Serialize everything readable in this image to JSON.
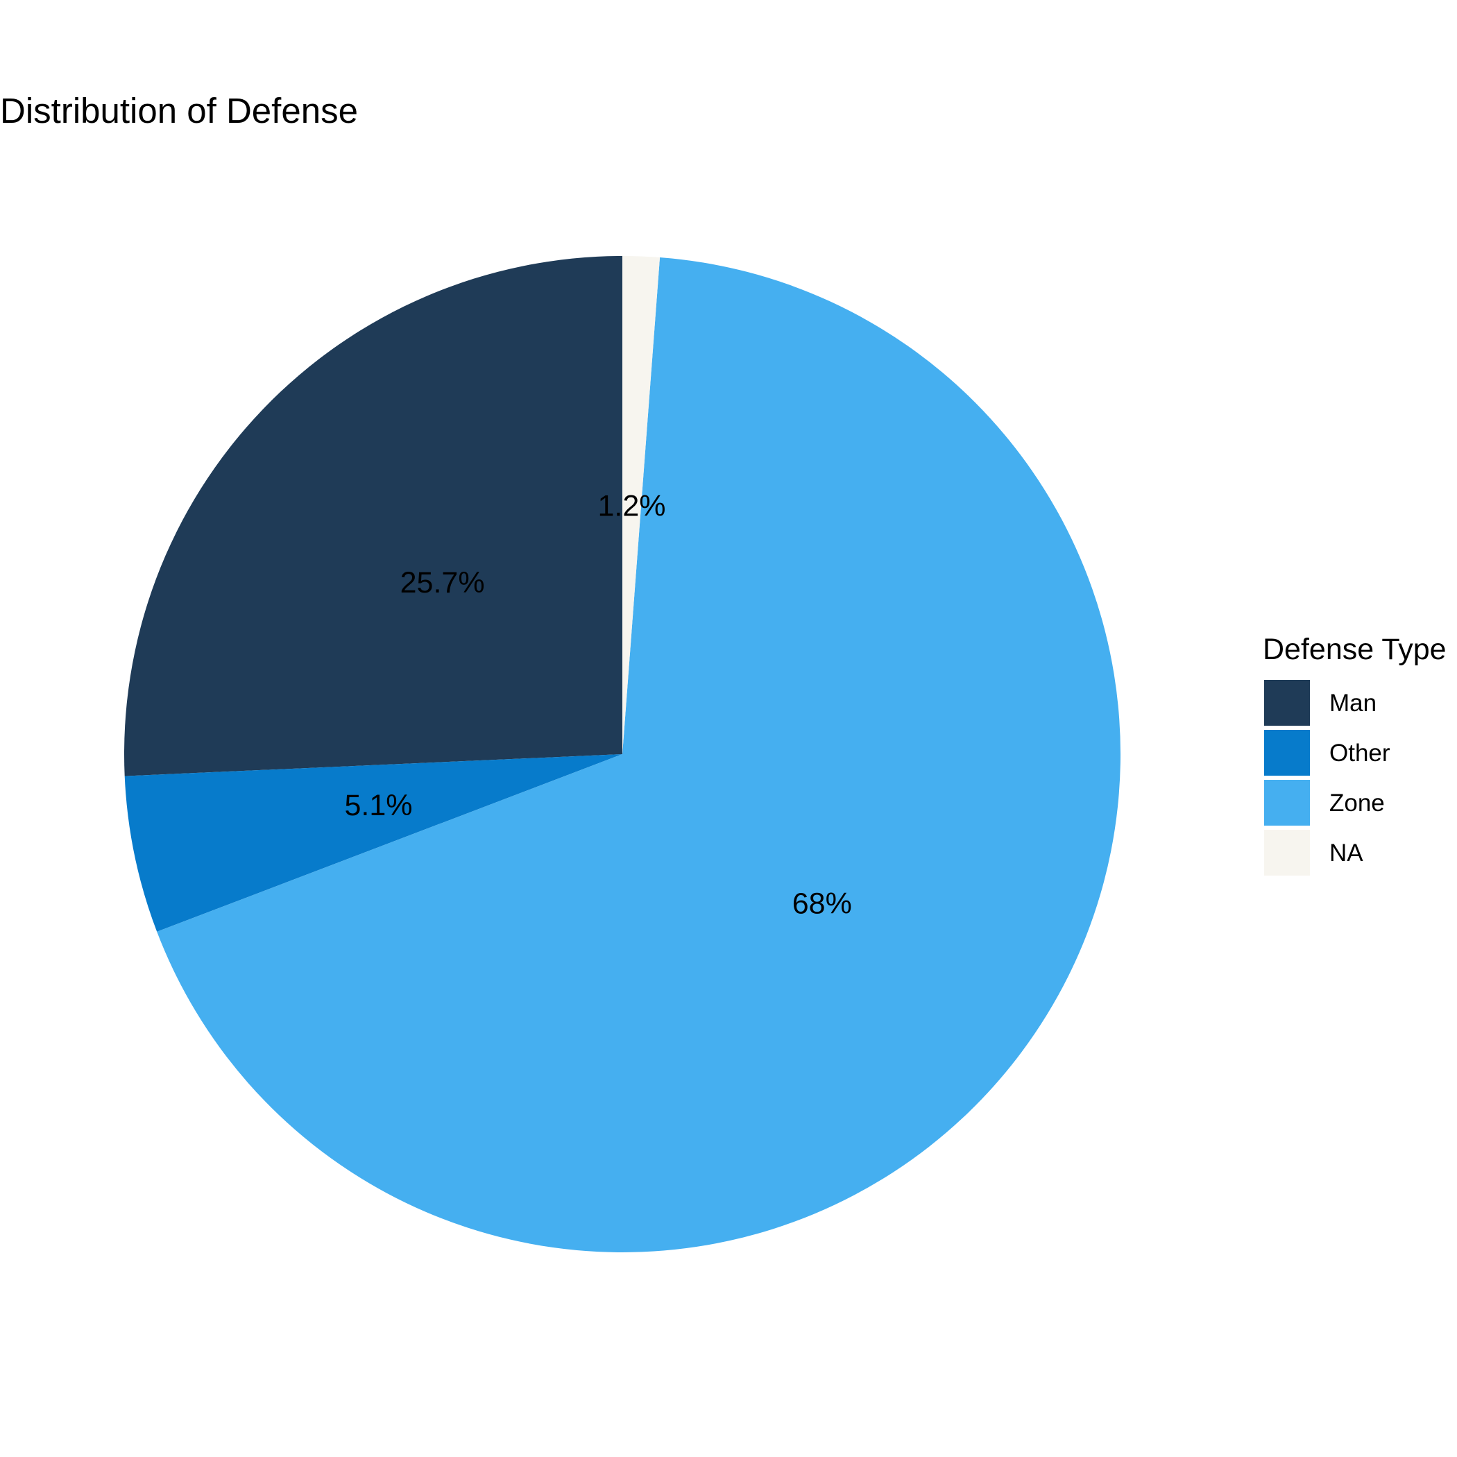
{
  "chart_data": {
    "type": "pie",
    "title": "Distribution of Defense",
    "legend_title": "Defense Type",
    "legend_position": "right",
    "start_angle": "12 o'clock",
    "direction": "counterclockwise",
    "slices": [
      {
        "category": "Man",
        "value": 25.7,
        "label": "25.7%",
        "color": "#1F3B57"
      },
      {
        "category": "Other",
        "value": 5.1,
        "label": "5.1%",
        "color": "#077BCB"
      },
      {
        "category": "Zone",
        "value": 68.0,
        "label": "68%",
        "color": "#45AFF0"
      },
      {
        "category": "NA",
        "value": 1.2,
        "label": "1.2%",
        "color": "#F7F5EF"
      }
    ]
  }
}
